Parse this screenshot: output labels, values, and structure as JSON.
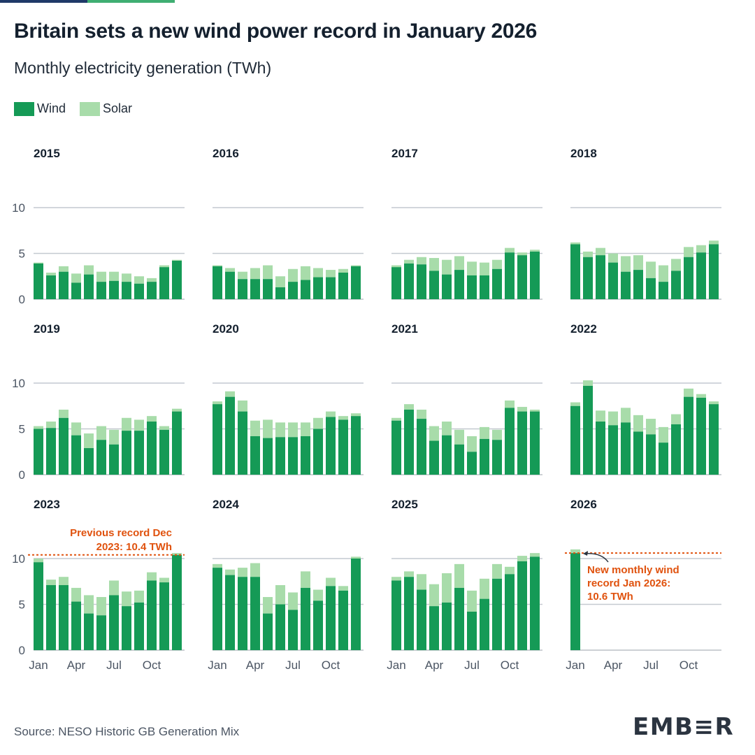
{
  "title": "Britain sets a new wind power record in January 2026",
  "subtitle": "Monthly electricity generation (TWh)",
  "legend": {
    "wind_label": "Wind",
    "solar_label": "Solar"
  },
  "colors": {
    "wind": "#159a56",
    "solar": "#a8dcaa",
    "record": "#e0520e",
    "grid": "#c4c9d0",
    "bar_blue": "#1f3a68",
    "bar_green": "#3fae72"
  },
  "source": "Source: NESO Historic GB Generation Mix",
  "logo": "EMB≡R",
  "chart_data": {
    "type": "bar",
    "stacked": true,
    "ylim": [
      0,
      10
    ],
    "yticks": [
      0,
      5,
      10
    ],
    "xtick_labels": [
      "Jan",
      "Apr",
      "Jul",
      "Oct"
    ],
    "xtick_months": [
      1,
      4,
      7,
      10
    ],
    "months": [
      "Jan",
      "Feb",
      "Mar",
      "Apr",
      "May",
      "Jun",
      "Jul",
      "Aug",
      "Sep",
      "Oct",
      "Nov",
      "Dec"
    ],
    "panels": [
      {
        "year": "2015",
        "wind": [
          3.9,
          2.6,
          3.0,
          1.8,
          2.7,
          1.9,
          2.0,
          1.9,
          1.7,
          1.9,
          3.5,
          4.2
        ],
        "solar": [
          0.1,
          0.3,
          0.6,
          1.0,
          1.0,
          1.1,
          1.0,
          0.9,
          0.8,
          0.4,
          0.2,
          0.1
        ]
      },
      {
        "year": "2016",
        "wind": [
          3.6,
          3.0,
          2.2,
          2.2,
          2.2,
          1.3,
          1.9,
          2.1,
          2.4,
          2.4,
          2.9,
          3.6
        ],
        "solar": [
          0.1,
          0.4,
          0.8,
          1.2,
          1.5,
          1.2,
          1.4,
          1.5,
          1.0,
          0.8,
          0.4,
          0.1
        ]
      },
      {
        "year": "2017",
        "wind": [
          3.5,
          3.9,
          3.8,
          3.1,
          2.7,
          3.2,
          2.6,
          2.6,
          3.3,
          5.1,
          4.8,
          5.2
        ],
        "solar": [
          0.2,
          0.4,
          0.8,
          1.4,
          1.6,
          1.5,
          1.5,
          1.4,
          1.0,
          0.5,
          0.3,
          0.2
        ]
      },
      {
        "year": "2018",
        "wind": [
          6.0,
          4.6,
          4.8,
          4.0,
          3.0,
          3.2,
          2.3,
          1.9,
          3.1,
          4.6,
          5.1,
          6.0
        ],
        "solar": [
          0.2,
          0.6,
          0.8,
          1.0,
          1.7,
          1.6,
          1.8,
          1.8,
          1.3,
          1.1,
          0.8,
          0.4
        ]
      },
      {
        "year": "2019",
        "wind": [
          5.0,
          5.1,
          6.2,
          4.3,
          2.9,
          3.8,
          3.3,
          4.8,
          4.8,
          5.8,
          4.9,
          6.9
        ],
        "solar": [
          0.3,
          0.7,
          0.9,
          1.4,
          1.6,
          1.5,
          1.6,
          1.4,
          1.2,
          0.6,
          0.4,
          0.3
        ]
      },
      {
        "year": "2020",
        "wind": [
          7.7,
          8.5,
          6.9,
          4.2,
          4.0,
          4.1,
          4.1,
          4.2,
          5.0,
          6.3,
          6.0,
          6.4
        ],
        "solar": [
          0.3,
          0.6,
          1.2,
          1.7,
          2.0,
          1.6,
          1.6,
          1.5,
          1.2,
          0.6,
          0.4,
          0.3
        ]
      },
      {
        "year": "2021",
        "wind": [
          5.9,
          7.1,
          6.1,
          3.7,
          4.3,
          3.3,
          2.5,
          3.9,
          3.8,
          7.3,
          6.9,
          6.9
        ],
        "solar": [
          0.3,
          0.6,
          1.0,
          1.6,
          1.5,
          1.6,
          1.7,
          1.3,
          1.1,
          0.8,
          0.5,
          0.2
        ]
      },
      {
        "year": "2022",
        "wind": [
          7.5,
          9.7,
          5.8,
          5.4,
          5.7,
          4.7,
          4.4,
          3.5,
          5.5,
          8.5,
          8.4,
          7.7
        ],
        "solar": [
          0.4,
          0.6,
          1.2,
          1.5,
          1.6,
          1.8,
          1.7,
          1.7,
          1.1,
          0.9,
          0.4,
          0.3
        ]
      },
      {
        "year": "2023",
        "wind": [
          9.6,
          7.1,
          7.1,
          5.3,
          4.0,
          3.8,
          6.0,
          4.8,
          5.2,
          7.6,
          7.4,
          10.4
        ],
        "solar": [
          0.4,
          0.6,
          0.9,
          1.5,
          2.0,
          2.0,
          1.6,
          1.6,
          1.3,
          0.9,
          0.5,
          0.2
        ]
      },
      {
        "year": "2024",
        "wind": [
          9.0,
          8.2,
          8.0,
          8.0,
          4.0,
          5.0,
          4.4,
          6.8,
          5.4,
          7.0,
          6.5,
          10.0
        ],
        "solar": [
          0.4,
          0.6,
          1.0,
          1.5,
          1.8,
          2.1,
          1.9,
          1.8,
          1.2,
          0.9,
          0.5,
          0.2
        ]
      },
      {
        "year": "2025",
        "wind": [
          7.6,
          8.0,
          6.6,
          4.8,
          5.2,
          6.8,
          4.2,
          5.6,
          7.8,
          8.3,
          9.7,
          10.2
        ],
        "solar": [
          0.4,
          0.6,
          1.7,
          2.4,
          3.2,
          2.6,
          2.3,
          2.2,
          1.6,
          0.8,
          0.6,
          0.4
        ]
      },
      {
        "year": "2026",
        "wind": [
          10.6
        ],
        "solar": [
          0.4
        ]
      }
    ],
    "annotations": [
      {
        "panel": "2023",
        "text_lines": [
          "Previous record Dec",
          "2023: 10.4 TWh"
        ],
        "value": 10.4
      },
      {
        "panel": "2026",
        "text_lines": [
          "New monthly wind",
          "record Jan 2026:",
          "10.6 TWh"
        ],
        "value": 10.6
      }
    ]
  }
}
